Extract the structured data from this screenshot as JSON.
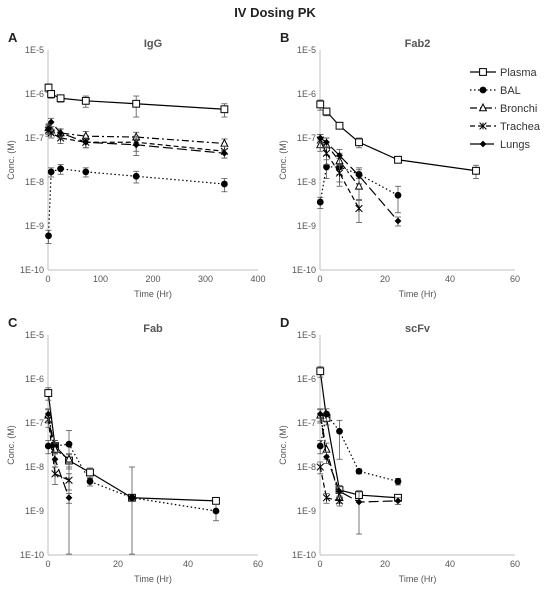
{
  "figure_title": "IV Dosing PK",
  "series_styles": [
    {
      "name": "Plasma",
      "marker": "open-square",
      "dash": "solid",
      "color": "#000000"
    },
    {
      "name": "BAL",
      "marker": "filled-circle",
      "dash": "dotted",
      "color": "#000000"
    },
    {
      "name": "Bronchi",
      "marker": "open-triangle",
      "dash": "dash-dot",
      "color": "#000000"
    },
    {
      "name": "Trachea",
      "marker": "asterisk",
      "dash": "dashed",
      "color": "#000000"
    },
    {
      "name": "Lungs",
      "marker": "filled-diamond",
      "dash": "long-dash",
      "color": "#000000"
    }
  ],
  "chart_data": [
    {
      "panel": "A",
      "type": "line",
      "title": "IgG",
      "xlabel": "Time (Hr)",
      "ylabel": "Conc. (M)",
      "xlim": [
        0,
        400
      ],
      "xticks": [
        0,
        100,
        200,
        300,
        400
      ],
      "ylim": [
        1e-10,
        1e-05
      ],
      "yscale": "log",
      "yticks": [
        "1E-10",
        "1E-9",
        "1E-8",
        "1E-7",
        "1E-6",
        "1E-5"
      ],
      "series": [
        {
          "name": "Plasma",
          "x": [
            1,
            6,
            24,
            72,
            168,
            336
          ],
          "y": [
            1.4e-06,
            1e-06,
            8e-07,
            7e-07,
            6e-07,
            4.5e-07
          ],
          "err": [
            3e-07,
            2e-07,
            1.5e-07,
            2e-07,
            3e-07,
            1.5e-07
          ]
        },
        {
          "name": "BAL",
          "x": [
            1,
            6,
            24,
            72,
            168,
            336
          ],
          "y": [
            6e-10,
            1.7e-08,
            2e-08,
            1.7e-08,
            1.35e-08,
            9e-09
          ],
          "err": [
            2e-10,
            4e-09,
            5e-09,
            4e-09,
            4e-09,
            3e-09
          ]
        },
        {
          "name": "Bronchi",
          "x": [
            1,
            6,
            24,
            72,
            168,
            336
          ],
          "y": [
            1.7e-07,
            1.5e-07,
            1.3e-07,
            1.1e-07,
            1.05e-07,
            7.5e-08
          ],
          "err": [
            4e-08,
            3e-08,
            3e-08,
            3e-08,
            3e-08,
            2e-08
          ]
        },
        {
          "name": "Trachea",
          "x": [
            1,
            6,
            24,
            72,
            168,
            336
          ],
          "y": [
            1.5e-07,
            1.3e-07,
            1e-07,
            8e-08,
            8e-08,
            5e-08
          ],
          "err": [
            4e-08,
            3e-08,
            2.5e-08,
            2e-08,
            3e-08,
            1.5e-08
          ]
        },
        {
          "name": "Lungs",
          "x": [
            1,
            6,
            24,
            72,
            168,
            336
          ],
          "y": [
            1.6e-07,
            2.3e-07,
            1.3e-07,
            8e-08,
            7e-08,
            4.5e-08
          ],
          "err": [
            4e-08,
            5e-08,
            3e-08,
            2e-08,
            3e-08,
            1e-08
          ]
        }
      ]
    },
    {
      "panel": "B",
      "type": "line",
      "title": "Fab2",
      "xlabel": "Time (Hr)",
      "ylabel": "Conc. (M)",
      "xlim": [
        0,
        60
      ],
      "xticks": [
        0,
        20,
        40,
        60
      ],
      "ylim": [
        1e-10,
        1e-05
      ],
      "yscale": "log",
      "yticks": [
        "1E-10",
        "1E-9",
        "1E-8",
        "1E-7",
        "1E-6",
        "1E-5"
      ],
      "legend": {
        "position": "top-right",
        "entries": [
          "Plasma",
          "BAL",
          "Bronchi",
          "Trachea",
          "Lungs"
        ]
      },
      "series": [
        {
          "name": "Plasma",
          "x": [
            0.08,
            2,
            6,
            12,
            24,
            48
          ],
          "y": [
            5.8e-07,
            4e-07,
            1.9e-07,
            8e-08,
            3.2e-08,
            1.8e-08
          ],
          "err": [
            1.5e-07,
            8e-08,
            3e-08,
            2e-08,
            5e-09,
            6e-09
          ]
        },
        {
          "name": "BAL",
          "x": [
            0.08,
            2,
            6,
            12,
            24
          ],
          "y": [
            3.5e-09,
            2.2e-08,
            2.2e-08,
            1.5e-08,
            5e-09
          ],
          "err": [
            1e-09,
            1e-08,
            1.2e-08,
            6e-09,
            3e-09
          ]
        },
        {
          "name": "Bronchi",
          "x": [
            0.08,
            2,
            6,
            12
          ],
          "y": [
            7e-08,
            7e-08,
            3e-08,
            8e-09
          ],
          "err": [
            2e-08,
            3e-08,
            1.5e-08,
            4e-09
          ]
        },
        {
          "name": "Trachea",
          "x": [
            0.08,
            2,
            6,
            12
          ],
          "y": [
            9e-08,
            4.5e-08,
            1.6e-08,
            2.5e-09
          ],
          "err": [
            3e-08,
            2e-08,
            8e-09,
            1.3e-09
          ]
        },
        {
          "name": "Lungs",
          "x": [
            0.08,
            2,
            6,
            12,
            24
          ],
          "y": [
            1e-07,
            8e-08,
            4e-08,
            1.4e-08,
            1.3e-09
          ],
          "err": [
            2e-08,
            2e-08,
            1.5e-08,
            5e-09,
            3e-10
          ]
        }
      ]
    },
    {
      "panel": "C",
      "type": "line",
      "title": "Fab",
      "xlabel": "Time (Hr)",
      "ylabel": "Conc. (M)",
      "xlim": [
        0,
        60
      ],
      "xticks": [
        0,
        20,
        40,
        60
      ],
      "ylim": [
        1e-10,
        1e-05
      ],
      "yscale": "log",
      "yticks": [
        "1E-10",
        "1E-9",
        "1E-8",
        "1E-7",
        "1E-6",
        "1E-5"
      ],
      "series": [
        {
          "name": "Plasma",
          "x": [
            0.08,
            2,
            6,
            12,
            24,
            48
          ],
          "y": [
            4.8e-07,
            3e-08,
            1.4e-08,
            7.5e-09,
            2e-09,
            1.7e-09
          ],
          "err": [
            1.5e-07,
            1e-08,
            5e-09,
            2e-09,
            3e-10,
            2e-10
          ]
        },
        {
          "name": "BAL",
          "x": [
            0.08,
            2,
            6,
            12,
            24,
            48
          ],
          "y": [
            3e-08,
            3e-08,
            3.3e-08,
            4.7e-09,
            2e-09,
            1e-09
          ],
          "err": [
            1e-08,
            1e-08,
            3.5e-08,
            1e-09,
            8e-09,
            4e-10
          ]
        },
        {
          "name": "Bronchi",
          "x": [
            0.08,
            2,
            6
          ],
          "y": [
            1.5e-07,
            2.5e-08,
            1.5e-08
          ],
          "err": [
            5e-08,
            1e-08,
            5e-09
          ]
        },
        {
          "name": "Trachea",
          "x": [
            0.08,
            2,
            6
          ],
          "y": [
            1.2e-07,
            7e-09,
            5e-09
          ],
          "err": [
            4e-08,
            3e-09,
            2e-09
          ]
        },
        {
          "name": "Lungs",
          "x": [
            0.08,
            2,
            6
          ],
          "y": [
            1.6e-07,
            1.5e-08,
            2e-09
          ],
          "err": [
            5e-08,
            5e-09,
            5e-10
          ]
        }
      ]
    },
    {
      "panel": "D",
      "type": "line",
      "title": "scFv",
      "xlabel": "Time (Hr)",
      "ylabel": "Conc. (M)",
      "xlim": [
        0,
        60
      ],
      "xticks": [
        0,
        20,
        40,
        60
      ],
      "ylim": [
        1e-10,
        1e-05
      ],
      "yscale": "log",
      "yticks": [
        "1E-10",
        "1E-9",
        "1E-8",
        "1E-7",
        "1E-6",
        "1E-5"
      ],
      "series": [
        {
          "name": "Plasma",
          "x": [
            0.08,
            2,
            6,
            12,
            24
          ],
          "y": [
            1.5e-06,
            1.3e-07,
            3e-09,
            2.3e-09,
            2e-09
          ],
          "err": [
            4e-07,
            4e-08,
            8e-10,
            4e-10,
            3e-10
          ]
        },
        {
          "name": "BAL",
          "x": [
            0.08,
            2,
            6,
            12,
            24
          ],
          "y": [
            3e-08,
            1.6e-07,
            6.5e-08,
            8e-09,
            4.7e-09
          ],
          "err": [
            1e-08,
            5e-08,
            5e-08,
            1e-09,
            8e-10
          ]
        },
        {
          "name": "Bronchi",
          "x": [
            0.08,
            2,
            6
          ],
          "y": [
            1.5e-07,
            2.5e-08,
            2e-09
          ],
          "err": [
            5e-08,
            1e-08,
            5e-10
          ]
        },
        {
          "name": "Trachea",
          "x": [
            0.08,
            2,
            6
          ],
          "y": [
            1e-08,
            2e-09,
            1.7e-09
          ],
          "err": [
            3e-09,
            5e-10,
            4e-10
          ]
        },
        {
          "name": "Lungs",
          "x": [
            0.08,
            2,
            6,
            12,
            24
          ],
          "y": [
            1.6e-07,
            1.7e-08,
            2.8e-09,
            1.6e-09,
            1.7e-09
          ],
          "err": [
            5e-08,
            5e-09,
            8e-10,
            1.3e-09,
            3e-10
          ]
        }
      ]
    }
  ]
}
